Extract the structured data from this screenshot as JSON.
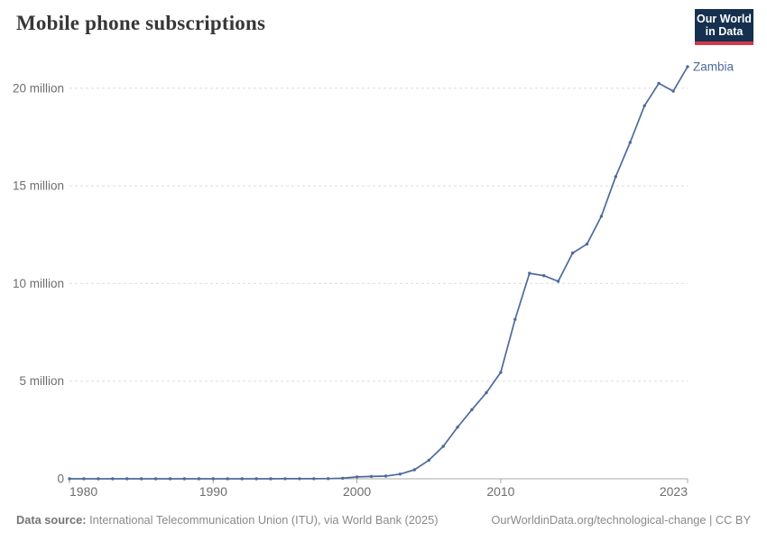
{
  "header": {
    "title": "Mobile phone subscriptions",
    "logo": {
      "line1": "Our World",
      "line2": "in Data"
    }
  },
  "chart_data": {
    "type": "line",
    "title": "Mobile phone subscriptions",
    "xlabel": "",
    "ylabel": "",
    "x": [
      1980,
      1981,
      1982,
      1983,
      1984,
      1985,
      1986,
      1987,
      1988,
      1989,
      1990,
      1991,
      1992,
      1993,
      1994,
      1995,
      1996,
      1997,
      1998,
      1999,
      2000,
      2001,
      2002,
      2003,
      2004,
      2005,
      2006,
      2007,
      2008,
      2009,
      2010,
      2011,
      2012,
      2013,
      2014,
      2015,
      2016,
      2017,
      2018,
      2019,
      2020,
      2021,
      2022,
      2023
    ],
    "series": [
      {
        "name": "Zambia",
        "color": "#4C6A9C",
        "values": [
          0,
          0,
          0,
          0,
          0,
          0,
          0,
          0,
          0,
          0,
          1000,
          1300,
          1600,
          1800,
          2000,
          2700,
          4200,
          5200,
          11000,
          28000,
          99000,
          121000,
          139000,
          241000,
          464000,
          950000,
          1660000,
          2640000,
          3540000,
          4410000,
          5450000,
          8160000,
          10520000,
          10400000,
          10110000,
          11560000,
          12020000,
          13440000,
          15470000,
          17220000,
          19100000,
          20250000,
          19850000,
          21100000
        ]
      }
    ],
    "xlim": [
      1980,
      2023
    ],
    "ylim": [
      0,
      21100000
    ],
    "x_ticks": [
      1980,
      1990,
      2000,
      2010,
      2023
    ],
    "y_ticks": [
      {
        "value": 0,
        "label": "0"
      },
      {
        "value": 5000000,
        "label": "5 million"
      },
      {
        "value": 10000000,
        "label": "10 million"
      },
      {
        "value": 15000000,
        "label": "15 million"
      },
      {
        "value": 20000000,
        "label": "20 million"
      }
    ],
    "grid": "horizontal-dashed",
    "legend": "end-of-line-label",
    "end_label": "Zambia"
  },
  "footer": {
    "data_source_label": "Data source:",
    "data_source_text": " International Telecommunication Union (ITU), via World Bank (2025)",
    "attribution": "OurWorldinData.org/technological-change | CC BY"
  },
  "colors": {
    "line": "#4C6A9C",
    "entity_label": "#4C6A9C",
    "grid": "#dedede",
    "axis": "#a8a8a8",
    "tick_label": "#6e6e6e",
    "title": "#383636",
    "logo_bg": "#16304f",
    "logo_accent": "#d0394a"
  }
}
